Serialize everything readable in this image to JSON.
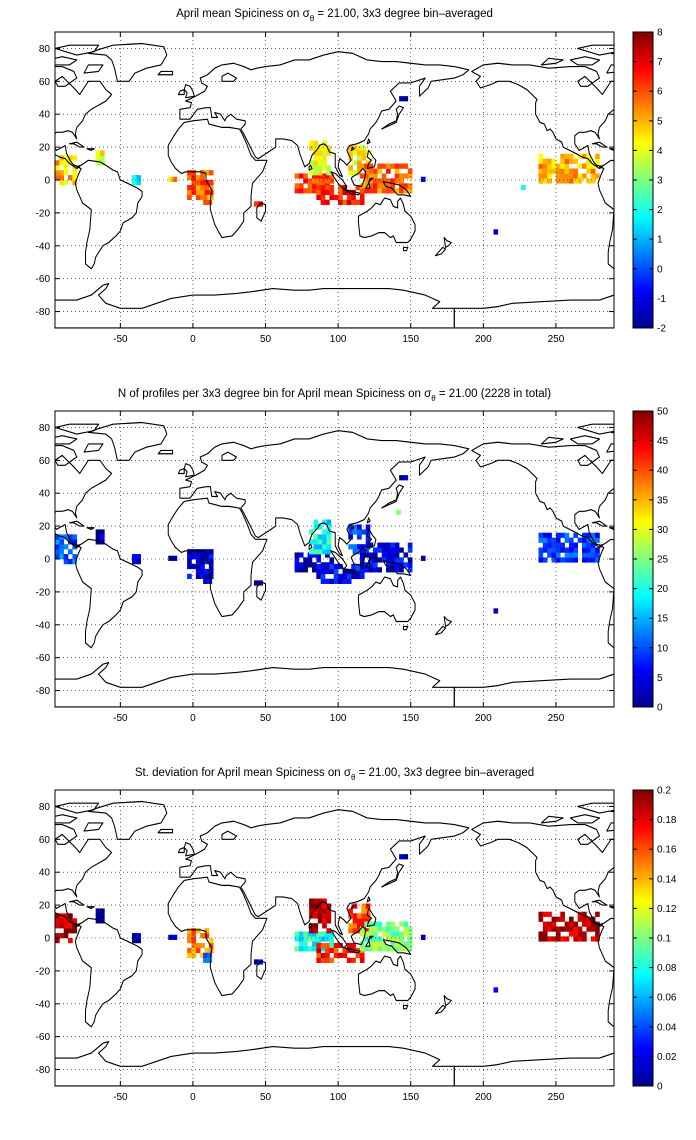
{
  "chart_data": [
    {
      "type": "heatmap",
      "title": "April mean Spiciness on σθ = 21.00, 3x3 degree bin–averaged",
      "title_parts": {
        "before": "April mean Spiciness on ",
        "symbol": "σ",
        "sub": "θ",
        "after": " = 21.00, 3x3 degree bin–averaged"
      },
      "xlim": [
        -95,
        290
      ],
      "ylim": [
        -90,
        90
      ],
      "x_ticks": [
        -50,
        0,
        50,
        100,
        150,
        200,
        250
      ],
      "y_ticks": [
        -80,
        -60,
        -40,
        -20,
        0,
        20,
        40,
        60,
        80
      ],
      "grid": true,
      "colorbar": {
        "min": -2,
        "max": 8,
        "ticks": [
          -2,
          -1,
          0,
          1,
          2,
          3,
          4,
          5,
          6,
          7,
          8
        ]
      },
      "bin_size_deg": 3,
      "regions": [
        {
          "lon": [
            -95,
            -80
          ],
          "lat": [
            -3,
            15
          ],
          "value": 4.9
        },
        {
          "lon": [
            -67,
            -62
          ],
          "lat": [
            9,
            16
          ],
          "value": 4.1
        },
        {
          "lon": [
            -42,
            -36
          ],
          "lat": [
            -3,
            2
          ],
          "value": 1.2
        },
        {
          "lon": [
            -17,
            -12
          ],
          "lat": [
            -1,
            2
          ],
          "value": 5.2
        },
        {
          "lon": [
            -4,
            12
          ],
          "lat": [
            -12,
            6
          ],
          "value": 5.9
        },
        {
          "lon": [
            7,
            12
          ],
          "lat": [
            -15,
            -9
          ],
          "value": 5.6
        },
        {
          "lon": [
            42,
            46
          ],
          "lat": [
            -16,
            -13
          ],
          "value": 6.2
        },
        {
          "lon": [
            70,
            96
          ],
          "lat": [
            -8,
            3
          ],
          "value": 6.2
        },
        {
          "lon": [
            80,
            94
          ],
          "lat": [
            3,
            24
          ],
          "value": 4.1
        },
        {
          "lon": [
            85,
            118
          ],
          "lat": [
            -15,
            -5
          ],
          "value": 6.5
        },
        {
          "lon": [
            107,
            122
          ],
          "lat": [
            3,
            21
          ],
          "value": 4.4
        },
        {
          "lon": [
            115,
            150
          ],
          "lat": [
            -8,
            9
          ],
          "value": 5.7
        },
        {
          "lon": [
            142,
            146
          ],
          "lat": [
            48,
            51
          ],
          "value": -1.6
        },
        {
          "lon": [
            157,
            160
          ],
          "lat": [
            -1,
            2
          ],
          "value": -1.4
        },
        {
          "lon": [
            226,
            229
          ],
          "lat": [
            -6,
            -3
          ],
          "value": 1.6
        },
        {
          "lon": [
            207,
            209
          ],
          "lat": [
            -33,
            -31
          ],
          "value": -1.5
        },
        {
          "lon": [
            238,
            278
          ],
          "lat": [
            -2,
            15
          ],
          "value": 5.0
        }
      ]
    },
    {
      "type": "heatmap",
      "title": "N of profiles per 3x3 degree bin for April mean Spiciness on σθ = 21.00 (2228 in total)",
      "title_parts": {
        "before": "N of profiles per 3x3 degree bin for April mean Spiciness on ",
        "symbol": "σ",
        "sub": "θ",
        "after": " = 21.00 (2228 in total)"
      },
      "xlim": [
        -95,
        290
      ],
      "ylim": [
        -90,
        90
      ],
      "x_ticks": [
        -50,
        0,
        50,
        100,
        150,
        200,
        250
      ],
      "y_ticks": [
        -80,
        -60,
        -40,
        -20,
        0,
        20,
        40,
        60,
        80
      ],
      "grid": true,
      "colorbar": {
        "min": 0,
        "max": 50,
        "ticks": [
          0,
          5,
          10,
          15,
          20,
          25,
          30,
          35,
          40,
          45,
          50
        ]
      },
      "bin_size_deg": 3,
      "regions": [
        {
          "lon": [
            -95,
            -80
          ],
          "lat": [
            -3,
            15
          ],
          "value": 11
        },
        {
          "lon": [
            -67,
            -62
          ],
          "lat": [
            9,
            16
          ],
          "value": 3
        },
        {
          "lon": [
            -42,
            -36
          ],
          "lat": [
            -3,
            2
          ],
          "value": 2
        },
        {
          "lon": [
            -17,
            -12
          ],
          "lat": [
            -1,
            2
          ],
          "value": 2
        },
        {
          "lon": [
            -4,
            12
          ],
          "lat": [
            -12,
            6
          ],
          "value": 4
        },
        {
          "lon": [
            7,
            12
          ],
          "lat": [
            -15,
            -9
          ],
          "value": 3
        },
        {
          "lon": [
            42,
            46
          ],
          "lat": [
            -16,
            -13
          ],
          "value": 2
        },
        {
          "lon": [
            70,
            96
          ],
          "lat": [
            -8,
            3
          ],
          "value": 3
        },
        {
          "lon": [
            80,
            94
          ],
          "lat": [
            3,
            24
          ],
          "value": 19
        },
        {
          "lon": [
            85,
            118
          ],
          "lat": [
            -15,
            -5
          ],
          "value": 6
        },
        {
          "lon": [
            107,
            122
          ],
          "lat": [
            3,
            21
          ],
          "value": 9
        },
        {
          "lon": [
            115,
            150
          ],
          "lat": [
            -8,
            9
          ],
          "value": 5
        },
        {
          "lon": [
            142,
            146
          ],
          "lat": [
            48,
            51
          ],
          "value": 2
        },
        {
          "lon": [
            140,
            143
          ],
          "lat": [
            27,
            30
          ],
          "value": 30
        },
        {
          "lon": [
            157,
            160
          ],
          "lat": [
            -1,
            2
          ],
          "value": 2
        },
        {
          "lon": [
            207,
            209
          ],
          "lat": [
            -33,
            -31
          ],
          "value": 2
        },
        {
          "lon": [
            238,
            278
          ],
          "lat": [
            -2,
            15
          ],
          "value": 9
        }
      ]
    },
    {
      "type": "heatmap",
      "title": "St. deviation for April mean Spiciness on σθ = 21.00, 3x3 degree bin–averaged",
      "title_parts": {
        "before": "St. deviation for April mean Spiciness on ",
        "symbol": "σ",
        "sub": "θ",
        "after": " = 21.00, 3x3 degree bin–averaged"
      },
      "xlim": [
        -95,
        290
      ],
      "ylim": [
        -90,
        90
      ],
      "x_ticks": [
        -50,
        0,
        50,
        100,
        150,
        200,
        250
      ],
      "y_ticks": [
        -80,
        -60,
        -40,
        -20,
        0,
        20,
        40,
        60,
        80
      ],
      "grid": true,
      "colorbar": {
        "min": 0,
        "max": 0.2,
        "ticks": [
          0,
          0.02,
          0.04,
          0.06,
          0.08,
          0.1,
          0.12,
          0.14,
          0.16,
          0.18,
          0.2
        ]
      },
      "bin_size_deg": 3,
      "regions": [
        {
          "lon": [
            -95,
            -80
          ],
          "lat": [
            -3,
            15
          ],
          "value": 0.19
        },
        {
          "lon": [
            -67,
            -62
          ],
          "lat": [
            9,
            16
          ],
          "value": 0.01
        },
        {
          "lon": [
            -42,
            -36
          ],
          "lat": [
            -3,
            2
          ],
          "value": 0.01
        },
        {
          "lon": [
            -17,
            -12
          ],
          "lat": [
            -1,
            2
          ],
          "value": 0.01
        },
        {
          "lon": [
            -4,
            12
          ],
          "lat": [
            -12,
            6
          ],
          "value": 0.15
        },
        {
          "lon": [
            7,
            12
          ],
          "lat": [
            -15,
            -9
          ],
          "value": 0.05
        },
        {
          "lon": [
            42,
            46
          ],
          "lat": [
            -16,
            -13
          ],
          "value": 0.01
        },
        {
          "lon": [
            70,
            96
          ],
          "lat": [
            -8,
            3
          ],
          "value": 0.08
        },
        {
          "lon": [
            80,
            94
          ],
          "lat": [
            3,
            24
          ],
          "value": 0.19
        },
        {
          "lon": [
            85,
            118
          ],
          "lat": [
            -15,
            -5
          ],
          "value": 0.17
        },
        {
          "lon": [
            107,
            122
          ],
          "lat": [
            3,
            21
          ],
          "value": 0.16
        },
        {
          "lon": [
            115,
            150
          ],
          "lat": [
            -8,
            9
          ],
          "value": 0.1
        },
        {
          "lon": [
            142,
            146
          ],
          "lat": [
            48,
            51
          ],
          "value": 0.01
        },
        {
          "lon": [
            157,
            160
          ],
          "lat": [
            -1,
            2
          ],
          "value": 0.01
        },
        {
          "lon": [
            207,
            209
          ],
          "lat": [
            -33,
            -31
          ],
          "value": 0.01
        },
        {
          "lon": [
            238,
            278
          ],
          "lat": [
            -2,
            15
          ],
          "value": 0.19
        }
      ]
    }
  ],
  "colormap": "jet",
  "coastline_color": "#000000"
}
